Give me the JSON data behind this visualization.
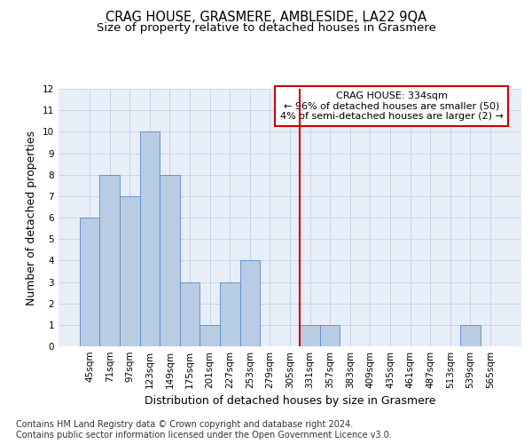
{
  "title": "CRAG HOUSE, GRASMERE, AMBLESIDE, LA22 9QA",
  "subtitle": "Size of property relative to detached houses in Grasmere",
  "xlabel": "Distribution of detached houses by size in Grasmere",
  "ylabel": "Number of detached properties",
  "bar_labels": [
    "45sqm",
    "71sqm",
    "97sqm",
    "123sqm",
    "149sqm",
    "175sqm",
    "201sqm",
    "227sqm",
    "253sqm",
    "279sqm",
    "305sqm",
    "331sqm",
    "357sqm",
    "383sqm",
    "409sqm",
    "435sqm",
    "461sqm",
    "487sqm",
    "513sqm",
    "539sqm",
    "565sqm"
  ],
  "bar_values": [
    6,
    8,
    7,
    10,
    8,
    3,
    1,
    3,
    4,
    0,
    0,
    1,
    1,
    0,
    0,
    0,
    0,
    0,
    0,
    1,
    0
  ],
  "bar_color": "#b8cce4",
  "bar_edgecolor": "#5a8ac6",
  "vline_x": 10.5,
  "vline_color": "#cc0000",
  "annotation_text": "CRAG HOUSE: 334sqm\n← 96% of detached houses are smaller (50)\n4% of semi-detached houses are larger (2) →",
  "annotation_box_color": "#ffffff",
  "annotation_box_edgecolor": "#cc0000",
  "ylim": [
    0,
    12
  ],
  "yticks": [
    0,
    1,
    2,
    3,
    4,
    5,
    6,
    7,
    8,
    9,
    10,
    11,
    12
  ],
  "grid_color": "#c8d4e8",
  "bg_color": "#e8eef8",
  "footnote": "Contains HM Land Registry data © Crown copyright and database right 2024.\nContains public sector information licensed under the Open Government Licence v3.0.",
  "title_fontsize": 10.5,
  "subtitle_fontsize": 9.5,
  "xlabel_fontsize": 9,
  "ylabel_fontsize": 9,
  "annotation_fontsize": 8,
  "footnote_fontsize": 7,
  "tick_fontsize": 7.5
}
